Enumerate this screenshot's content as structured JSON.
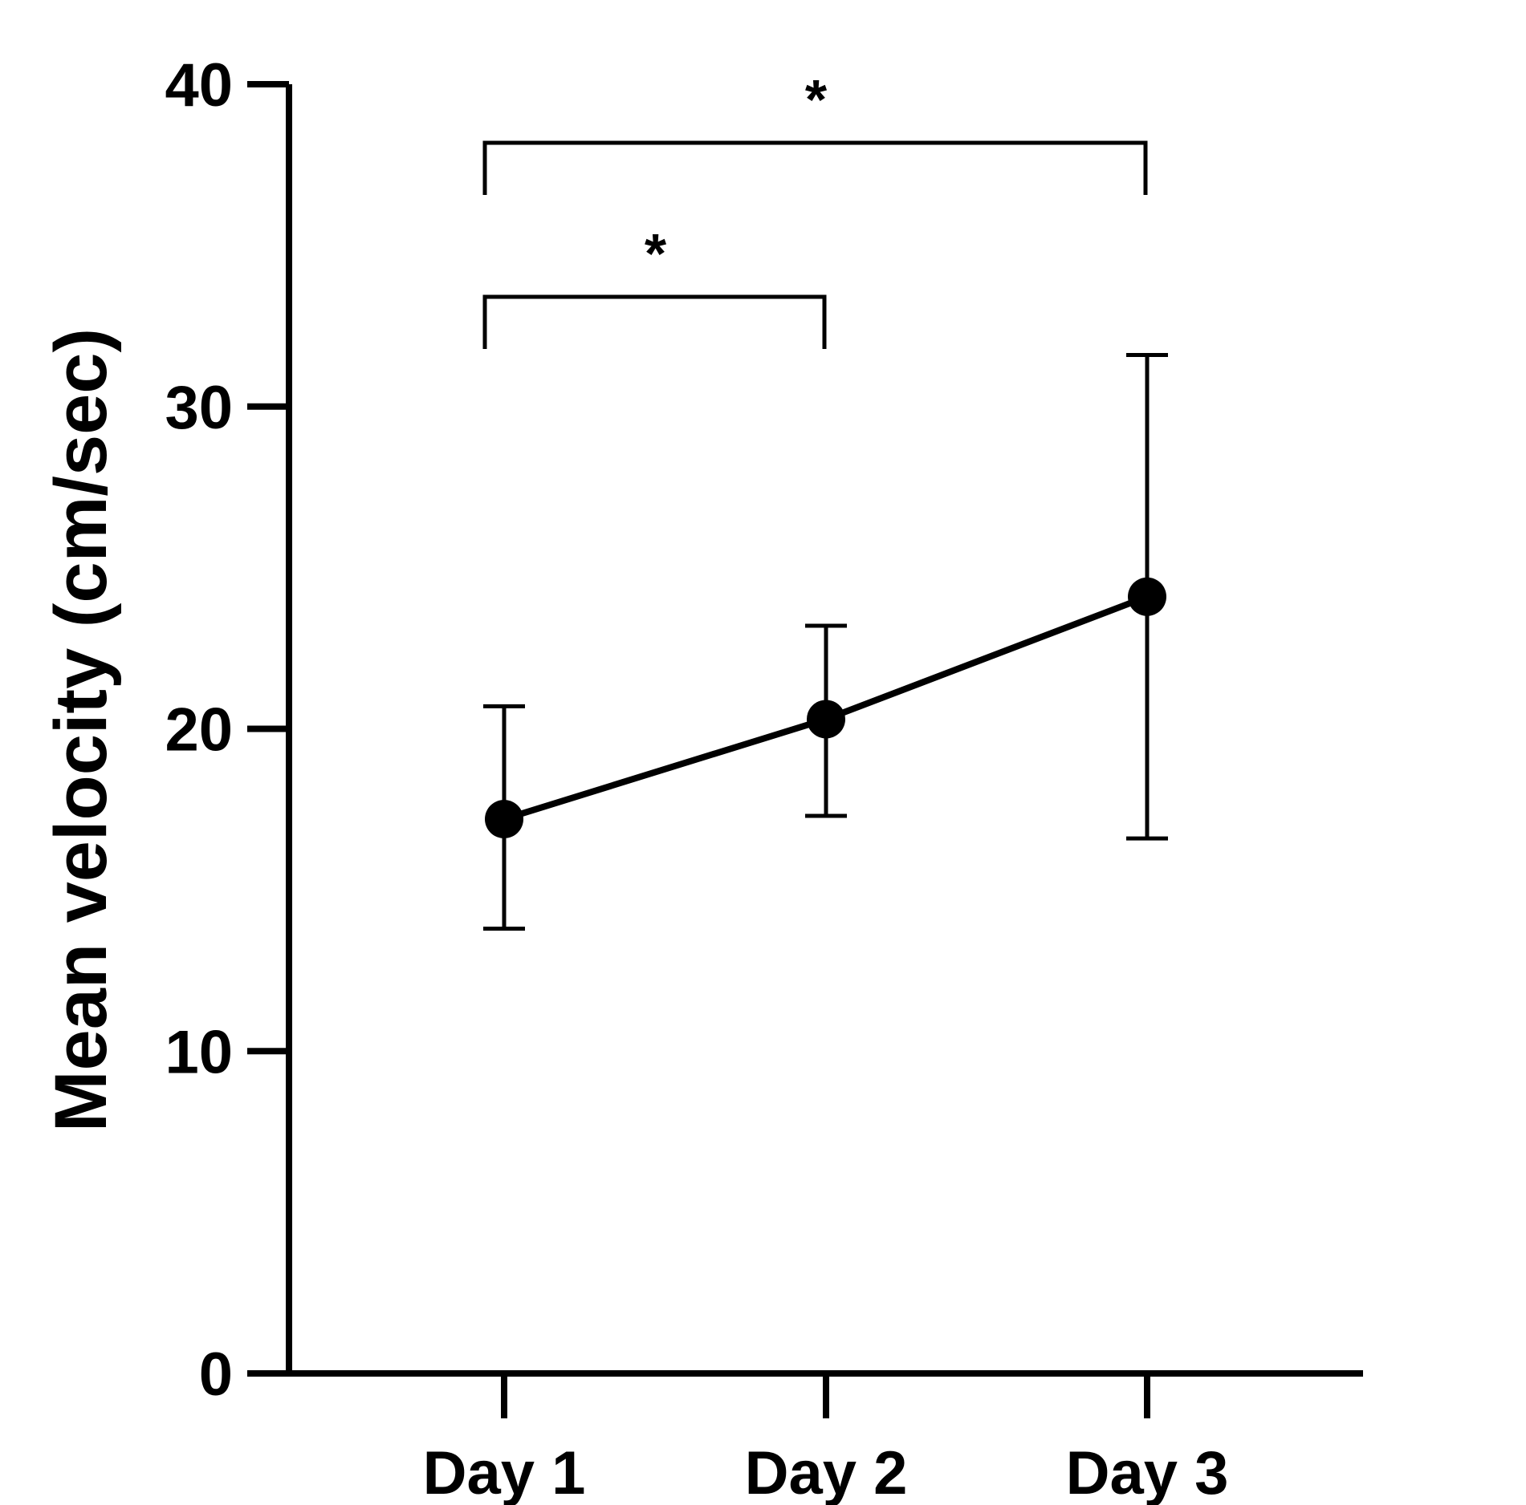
{
  "chart_data": {
    "type": "line",
    "title": "",
    "xlabel": "",
    "ylabel": "Mean velocity (cm/sec)",
    "ylim": [
      0,
      40
    ],
    "yticks": [
      "0",
      "10",
      "20",
      "30",
      "40"
    ],
    "categories": [
      "Day 1",
      "Day 2",
      "Day 3"
    ],
    "series": [
      {
        "values": [
          17.2,
          20.3,
          24.1
        ],
        "error_lower": [
          13.8,
          17.3,
          16.6
        ],
        "error_upper": [
          20.7,
          23.2,
          31.6
        ]
      }
    ],
    "significance": [
      {
        "from": "Day 1",
        "to": "Day 2",
        "label": "*"
      },
      {
        "from": "Day 1",
        "to": "Day 3",
        "label": "*"
      }
    ],
    "grid": false,
    "colors": {
      "line": "#000000",
      "marker": "#000000"
    }
  }
}
